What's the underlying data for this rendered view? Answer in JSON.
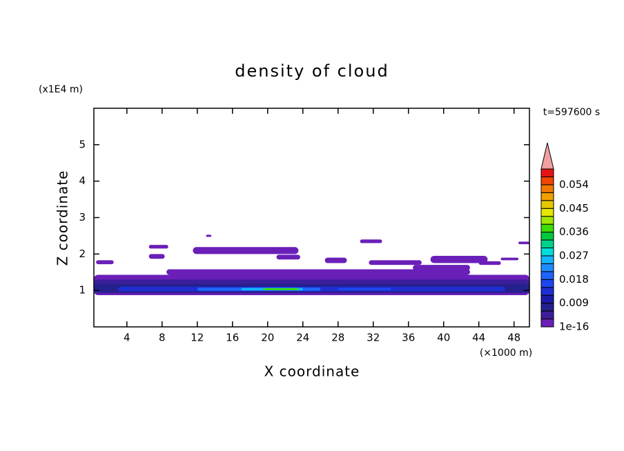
{
  "chart_data": {
    "type": "contour",
    "title": "density of cloud",
    "x_label": "X coordinate",
    "x_unit": "(×1000 m)",
    "y_label": "Z coordinate",
    "y_unit": "(x1E4 m)",
    "time_label": "t=597600 s",
    "xlim": [
      0.25,
      49.75
    ],
    "ylim": [
      0,
      6
    ],
    "xticks": [
      4,
      8,
      12,
      16,
      20,
      24,
      28,
      32,
      36,
      40,
      44,
      48
    ],
    "yticks": [
      1,
      2,
      3,
      4,
      5
    ],
    "colorbar": {
      "levels": [
        1e-16,
        0.003,
        0.006,
        0.009,
        0.012,
        0.015,
        0.018,
        0.021,
        0.024,
        0.027,
        0.03,
        0.033,
        0.036,
        0.039,
        0.042,
        0.045,
        0.048,
        0.051,
        0.054,
        0.057,
        0.06
      ],
      "colors": [
        "#6a1fb8",
        "#3c1e9a",
        "#24208c",
        "#1a1aa8",
        "#1e2ed2",
        "#1e46f0",
        "#1e64ff",
        "#1e8cff",
        "#14b4ff",
        "#00dcdc",
        "#00d28c",
        "#00c83c",
        "#3cdc00",
        "#a0e600",
        "#e6e600",
        "#e6c800",
        "#f0a000",
        "#f07800",
        "#f04600",
        "#e61414"
      ],
      "over_color": "#f0a0a0",
      "ticks": [
        1e-16,
        0.009,
        0.018,
        0.027,
        0.036,
        0.045,
        0.054
      ]
    },
    "patches": [
      {
        "x": [
          0.25,
          49.75
        ],
        "z": [
          0.87,
          1.43
        ],
        "value": 0.001
      },
      {
        "x": [
          8.5,
          43
        ],
        "z": [
          1.43,
          1.58
        ],
        "value": 0.001
      },
      {
        "x": [
          0.25,
          49.75
        ],
        "z": [
          0.92,
          1.3
        ],
        "value": 0.004
      },
      {
        "x": [
          0.25,
          49.75
        ],
        "z": [
          0.95,
          1.17
        ],
        "value": 0.007
      },
      {
        "x": [
          3,
          47
        ],
        "z": [
          0.98,
          1.1
        ],
        "value": 0.013
      },
      {
        "x": [
          12,
          26
        ],
        "z": [
          0.99,
          1.08
        ],
        "value": 0.02
      },
      {
        "x": [
          28,
          34
        ],
        "z": [
          1.0,
          1.07
        ],
        "value": 0.017
      },
      {
        "x": [
          17,
          24
        ],
        "z": [
          1.0,
          1.07
        ],
        "value": 0.026
      },
      {
        "x": [
          19.5,
          23.5
        ],
        "z": [
          1.01,
          1.06
        ],
        "value": 0.037
      },
      {
        "x": [
          0.5,
          2.5
        ],
        "z": [
          1.72,
          1.83
        ],
        "value": 0.001
      },
      {
        "x": [
          6.5,
          8.7
        ],
        "z": [
          2.15,
          2.25
        ],
        "value": 0.001
      },
      {
        "x": [
          6.5,
          8.3
        ],
        "z": [
          1.87,
          2.0
        ],
        "value": 0.001
      },
      {
        "x": [
          11.5,
          23.5
        ],
        "z": [
          2.0,
          2.19
        ],
        "value": 0.001
      },
      {
        "x": [
          13.0,
          13.6
        ],
        "z": [
          2.47,
          2.53
        ],
        "value": 0.001
      },
      {
        "x": [
          21,
          23.7
        ],
        "z": [
          1.85,
          1.98
        ],
        "value": 0.001
      },
      {
        "x": [
          26.5,
          29
        ],
        "z": [
          1.75,
          1.9
        ],
        "value": 0.001
      },
      {
        "x": [
          30.5,
          33
        ],
        "z": [
          2.3,
          2.4
        ],
        "value": 0.001
      },
      {
        "x": [
          31.5,
          37.5
        ],
        "z": [
          1.7,
          1.83
        ],
        "value": 0.001
      },
      {
        "x": [
          38.5,
          45
        ],
        "z": [
          1.75,
          1.95
        ],
        "value": 0.001
      },
      {
        "x": [
          36.5,
          43
        ],
        "z": [
          1.55,
          1.7
        ],
        "value": 0.001
      },
      {
        "x": [
          44,
          46.5
        ],
        "z": [
          1.7,
          1.8
        ],
        "value": 0.001
      },
      {
        "x": [
          46.5,
          48.5
        ],
        "z": [
          1.83,
          1.9
        ],
        "value": 0.001
      },
      {
        "x": [
          48.5,
          49.75
        ],
        "z": [
          2.27,
          2.34
        ],
        "value": 0.001
      }
    ]
  }
}
